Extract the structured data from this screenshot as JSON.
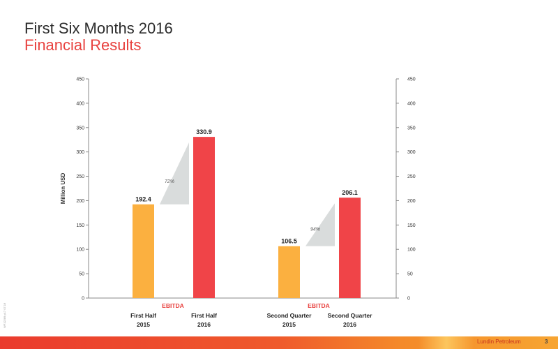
{
  "slide": {
    "title": "First Six Months 2016",
    "subtitle": "Financial Results",
    "side_code": "WF12289  p17  07.16",
    "footer_company": "Lundin Petroleum",
    "page_number": "3"
  },
  "colors": {
    "series_2015": "#fbb040",
    "series_2016": "#f04448",
    "category_label": "#e8423f",
    "wedge": "#d9dcdc",
    "axis_text": "#333333"
  },
  "chart_data": {
    "type": "bar",
    "ylabel": "Million USD",
    "ylim": [
      0,
      450
    ],
    "yticks": [
      0,
      50,
      100,
      150,
      200,
      250,
      300,
      350,
      400,
      450
    ],
    "grid": false,
    "groups": [
      {
        "category": "EBITDA",
        "bars": [
          {
            "label_line1": "First Half",
            "label_line2": "2015",
            "value": 192.4,
            "value_label": "192.4",
            "year": "2015"
          },
          {
            "label_line1": "First Half",
            "label_line2": "2016",
            "value": 330.9,
            "value_label": "330.9",
            "year": "2016"
          }
        ],
        "change_label": "72%"
      },
      {
        "category": "EBITDA",
        "bars": [
          {
            "label_line1": "Second Quarter",
            "label_line2": "2015",
            "value": 106.5,
            "value_label": "106.5",
            "year": "2015"
          },
          {
            "label_line1": "Second Quarter",
            "label_line2": "2016",
            "value": 206.1,
            "value_label": "206.1",
            "year": "2016"
          }
        ],
        "change_label": "94%"
      }
    ]
  }
}
